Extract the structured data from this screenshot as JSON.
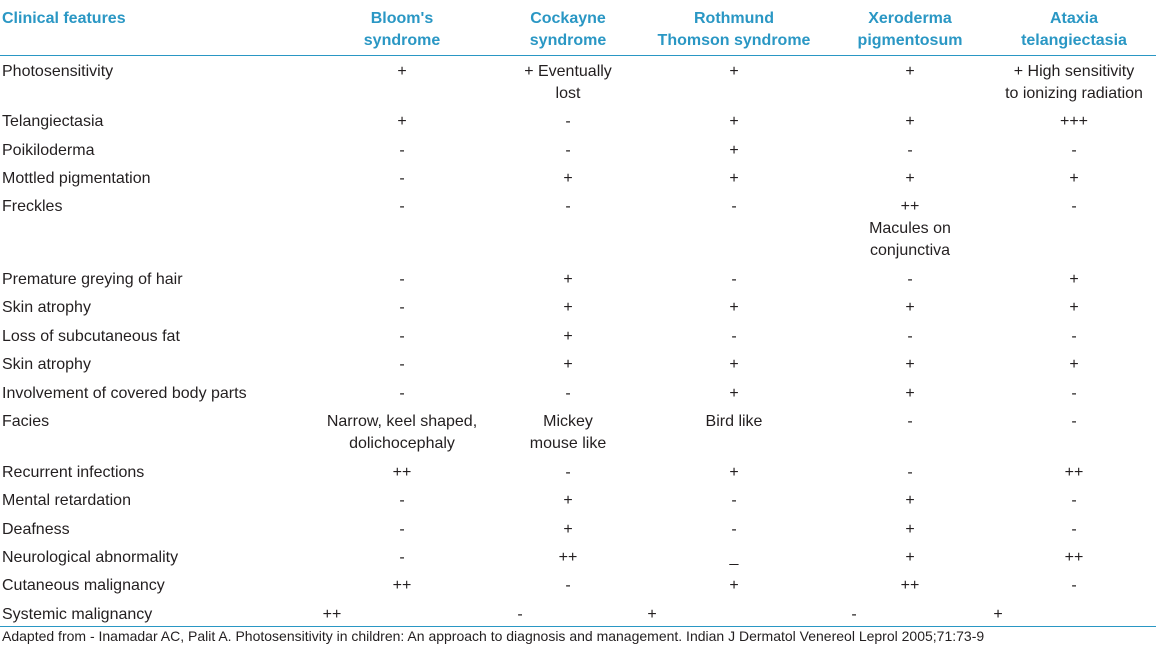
{
  "table": {
    "headers": [
      "Clinical features",
      "Bloom's\nsyndrome",
      "Cockayne\nsyndrome",
      "Rothmund\nThomson syndrome",
      "Xeroderma\npigmentosum",
      "Ataxia\ntelangiectasia"
    ],
    "rows": [
      {
        "feature": "Photosensitivity",
        "values": [
          "+",
          "+ Eventually\nlost",
          "+",
          "+",
          "+ High sensitivity\nto ionizing radiation"
        ]
      },
      {
        "feature": "Telangiectasia",
        "values": [
          "+",
          "-",
          "+",
          "+",
          "+++"
        ]
      },
      {
        "feature": "Poikiloderma",
        "values": [
          "-",
          "-",
          "+",
          "-",
          "-"
        ]
      },
      {
        "feature": "Mottled pigmentation",
        "values": [
          "-",
          "+",
          "+",
          "+",
          "+"
        ]
      },
      {
        "feature": "Freckles",
        "values": [
          "-",
          "-",
          "-",
          "++\nMacules on\nconjunctiva",
          "-"
        ]
      },
      {
        "feature": "Premature greying of hair",
        "values": [
          "-",
          "+",
          "-",
          "-",
          "+"
        ]
      },
      {
        "feature": "Skin atrophy",
        "values": [
          "-",
          "+",
          "+",
          "+",
          "+"
        ]
      },
      {
        "feature": "Loss of subcutaneous fat",
        "values": [
          "-",
          "+",
          "-",
          "-",
          "-"
        ]
      },
      {
        "feature": "Skin atrophy",
        "values": [
          "-",
          "+",
          "+",
          "+",
          "+"
        ]
      },
      {
        "feature": "Involvement of covered body parts",
        "values": [
          "-",
          "-",
          "+",
          "+",
          "-"
        ]
      },
      {
        "feature": "Facies",
        "values": [
          "Narrow, keel shaped,\ndolichocephaly",
          "Mickey\nmouse like",
          "Bird like",
          "-",
          "-"
        ]
      },
      {
        "feature": "Recurrent infections",
        "values": [
          "++",
          "-",
          "+",
          "-",
          "++"
        ]
      },
      {
        "feature": "Mental retardation",
        "values": [
          "-",
          "+",
          "-",
          "+",
          "-"
        ]
      },
      {
        "feature": "Deafness",
        "values": [
          "-",
          "+",
          "-",
          "+",
          "-"
        ]
      },
      {
        "feature": "Neurological abnormality",
        "values": [
          "-",
          "++",
          "_",
          "+",
          "++"
        ]
      },
      {
        "feature": "Cutaneous malignancy",
        "values": [
          "++",
          "-",
          "+",
          "++",
          "-"
        ]
      },
      {
        "feature": "Systemic malignancy",
        "values": [
          "++",
          "-",
          "+",
          "-",
          "+"
        ]
      }
    ]
  },
  "footer": "Adapted from - Inamadar AC, Palit A. Photosensitivity in children: An approach to diagnosis and management. Indian J Dermatol Venereol Leprol 2005;71:73-9",
  "colors": {
    "accent": "#2a97c4",
    "text": "#231f20"
  }
}
